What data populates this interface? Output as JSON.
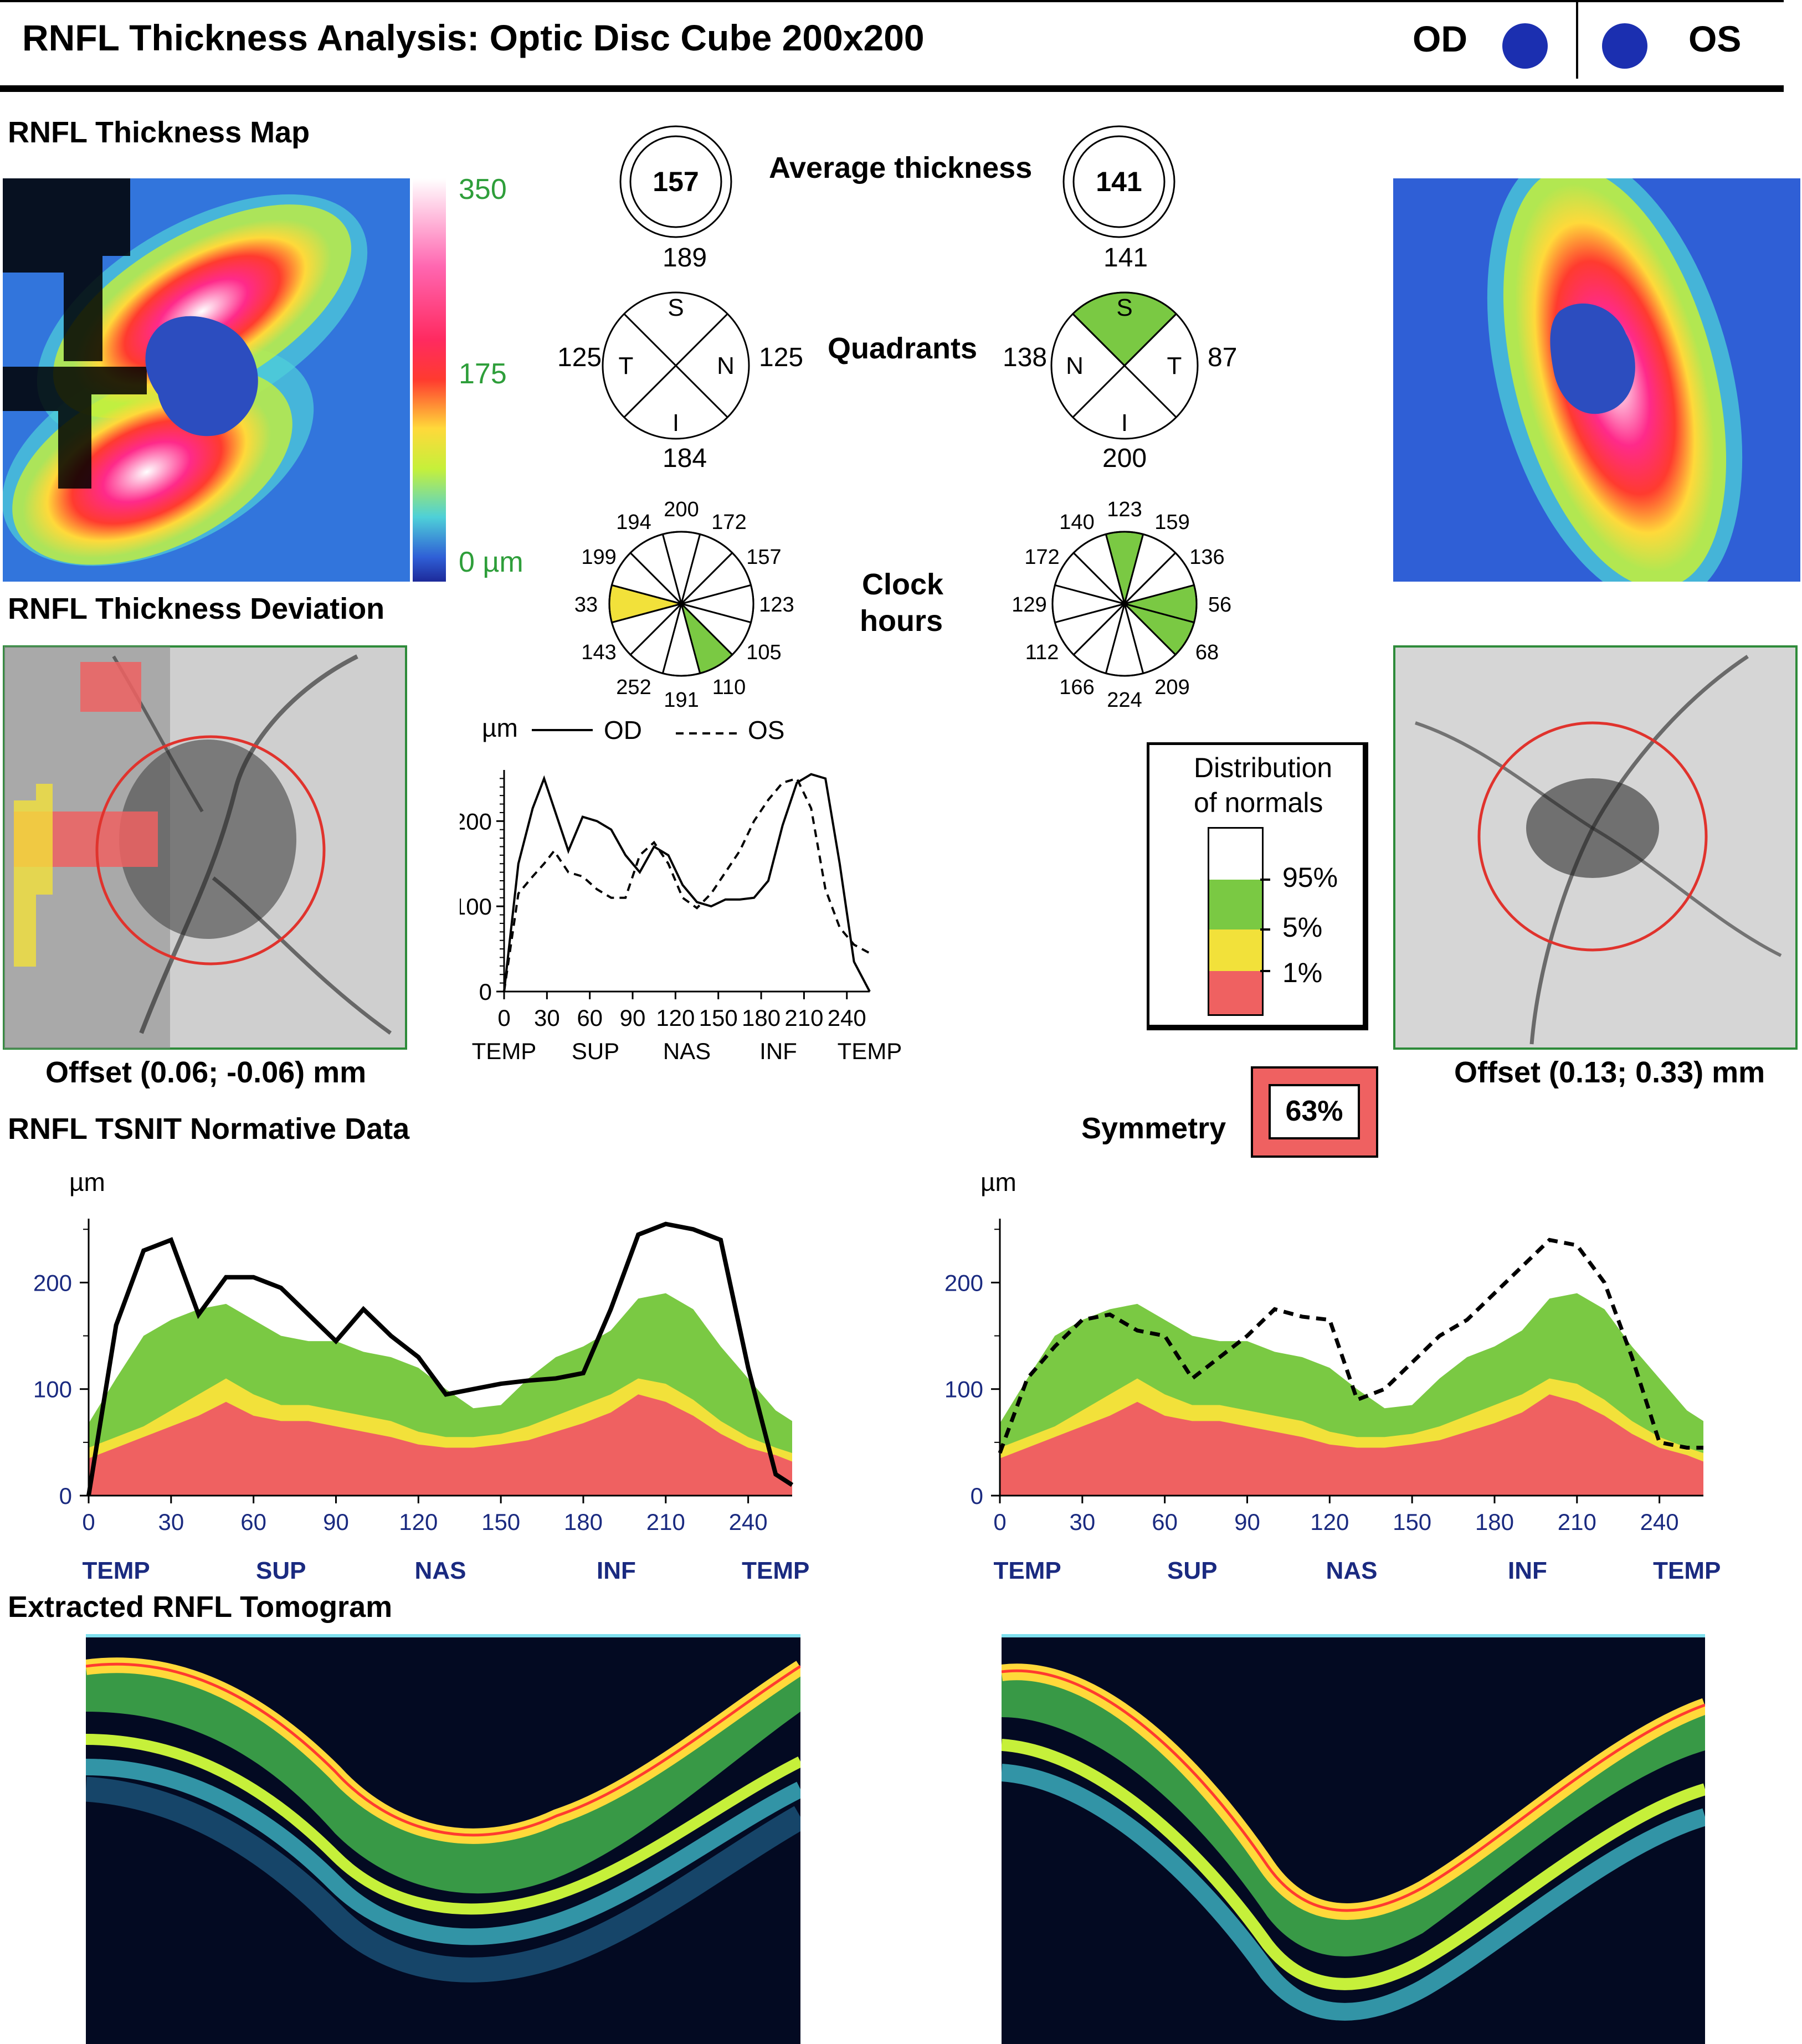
{
  "header": {
    "title": "RNFL Thickness Analysis: Optic Disc Cube 200x200",
    "od_label": "OD",
    "os_label": "OS"
  },
  "sections": {
    "thickness_map": "RNFL Thickness Map",
    "thickness_deviation": "RNFL Thickness Deviation",
    "tsnit_normative": "RNFL TSNIT Normative Data",
    "tomogram": "Extracted RNFL Tomogram"
  },
  "colorbar": {
    "max": "350",
    "mid": "175",
    "min": "0 µm"
  },
  "offsets": {
    "od": "Offset (0.06; -0.06) mm",
    "os": "Offset (0.13; 0.33) mm"
  },
  "average_thickness": {
    "label": "Average thickness",
    "od": {
      "value": "157",
      "below": "189"
    },
    "os": {
      "value": "141",
      "below": "141"
    }
  },
  "quadrants": {
    "label": "Quadrants",
    "od": {
      "S": "S",
      "T": "T",
      "N": "N",
      "I": "I",
      "left": "125",
      "right": "125",
      "bottom": "184"
    },
    "os": {
      "S": "S",
      "T": "T",
      "N": "N",
      "I": "I",
      "left": "138",
      "right": "87",
      "bottom": "200"
    }
  },
  "clock_hours": {
    "label_line1": "Clock",
    "label_line2": "hours",
    "od": [
      "200",
      "172",
      "157",
      "123",
      "105",
      "110",
      "191",
      "252",
      "143",
      "33",
      "199",
      "194"
    ],
    "os": [
      "123",
      "159",
      "136",
      "56",
      "68",
      "209",
      "224",
      "166",
      "112",
      "129",
      "172",
      "140"
    ],
    "od_colors": [
      "#fff",
      "#fff",
      "#fff",
      "#fff",
      "#fff",
      "#7ac943",
      "#fff",
      "#fff",
      "#fff",
      "#f2e13a",
      "#fff",
      "#fff"
    ],
    "os_colors": [
      "#7ac943",
      "#fff",
      "#fff",
      "#7ac943",
      "#7ac943",
      "#fff",
      "#fff",
      "#fff",
      "#fff",
      "#fff",
      "#fff",
      "#fff"
    ]
  },
  "legend": {
    "title_line1": "Distribution",
    "title_line2": "of normals",
    "p95": "95%",
    "p5": "5%",
    "p1": "1%"
  },
  "symmetry": {
    "label": "Symmetry",
    "value": "63%"
  },
  "tsnit_axes": {
    "unit": "µm",
    "x_ticks": [
      "0",
      "30",
      "60",
      "90",
      "120",
      "150",
      "180",
      "210",
      "240"
    ],
    "y_ticks": [
      "0",
      "100",
      "200"
    ],
    "regions": [
      "TEMP",
      "SUP",
      "NAS",
      "INF",
      "TEMP"
    ],
    "legend_od": "OD",
    "legend_os": "OS"
  },
  "colors": {
    "normal_green": "#7ac943",
    "borderline_yellow": "#f2e13a",
    "abnormal_red": "#ef6161",
    "disc_blue": "#2c4dbf",
    "axis_blue": "#1a2a80"
  },
  "chart_data": [
    {
      "type": "line",
      "x": [
        0,
        10,
        20,
        28,
        35,
        45,
        55,
        65,
        75,
        85,
        95,
        105,
        115,
        125,
        135,
        145,
        155,
        165,
        175,
        185,
        195,
        205,
        215,
        225,
        235,
        245,
        256
      ],
      "series": [
        {
          "name": "OD",
          "values": [
            0,
            150,
            215,
            250,
            215,
            165,
            205,
            200,
            190,
            160,
            140,
            170,
            160,
            125,
            105,
            100,
            108,
            108,
            110,
            130,
            195,
            245,
            255,
            250,
            150,
            35,
            0
          ]
        },
        {
          "name": "OS",
          "values": [
            0,
            115,
            135,
            150,
            165,
            140,
            135,
            120,
            110,
            110,
            160,
            175,
            150,
            110,
            98,
            115,
            140,
            165,
            200,
            225,
            245,
            250,
            215,
            120,
            75,
            55,
            45
          ]
        }
      ],
      "xlim": [
        0,
        256
      ],
      "ylim": [
        0,
        260
      ],
      "xticks": [
        0,
        30,
        60,
        90,
        120,
        150,
        180,
        210,
        240
      ],
      "yticks": [
        0,
        100,
        200
      ],
      "ylabel": "µm"
    },
    {
      "type": "area",
      "x": [
        0,
        10,
        20,
        30,
        40,
        50,
        60,
        70,
        80,
        90,
        100,
        110,
        120,
        130,
        140,
        150,
        160,
        170,
        180,
        190,
        200,
        210,
        220,
        230,
        240,
        250,
        256
      ],
      "p95": [
        68,
        110,
        150,
        165,
        175,
        180,
        165,
        150,
        145,
        145,
        135,
        130,
        120,
        100,
        82,
        85,
        110,
        130,
        140,
        155,
        185,
        190,
        175,
        140,
        110,
        80,
        70
      ],
      "p5": [
        45,
        55,
        65,
        80,
        95,
        110,
        95,
        85,
        85,
        80,
        75,
        70,
        60,
        55,
        55,
        58,
        65,
        75,
        85,
        95,
        110,
        105,
        90,
        70,
        55,
        45,
        40
      ],
      "p1": [
        35,
        45,
        55,
        65,
        75,
        88,
        75,
        70,
        70,
        65,
        60,
        55,
        48,
        45,
        45,
        48,
        52,
        60,
        68,
        78,
        95,
        88,
        75,
        58,
        45,
        38,
        32
      ],
      "od": [
        0,
        160,
        230,
        240,
        170,
        205,
        205,
        195,
        170,
        145,
        175,
        150,
        130,
        95,
        100,
        105,
        108,
        110,
        115,
        175,
        245,
        255,
        250,
        240,
        120,
        20,
        10
      ],
      "os": [
        40,
        110,
        140,
        165,
        170,
        155,
        150,
        110,
        130,
        150,
        175,
        168,
        165,
        90,
        100,
        125,
        150,
        165,
        190,
        215,
        240,
        235,
        200,
        130,
        50,
        45,
        45
      ],
      "xlim": [
        0,
        256
      ],
      "ylim": [
        0,
        260
      ],
      "xticks": [
        0,
        30,
        60,
        90,
        120,
        150,
        180,
        210,
        240
      ],
      "yticks": [
        0,
        100,
        200
      ],
      "ylabel": "µm"
    }
  ]
}
